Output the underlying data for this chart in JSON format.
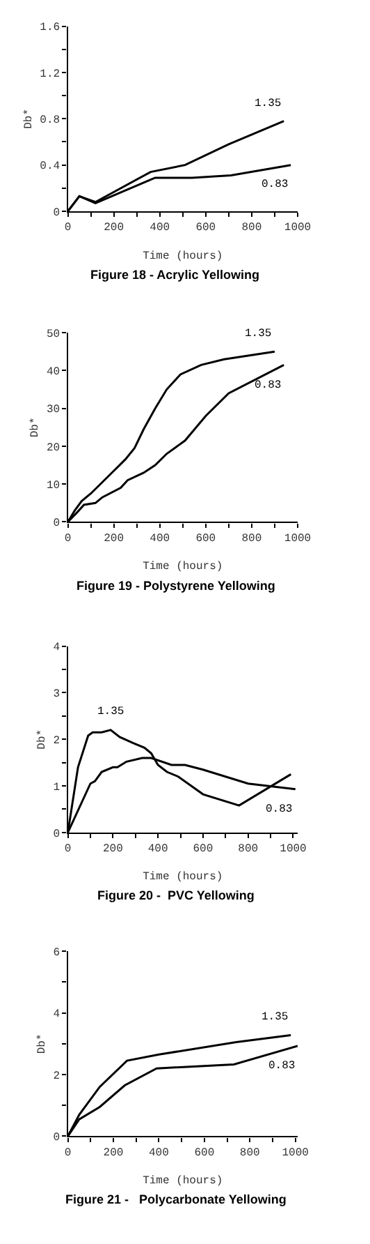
{
  "chart_data": [
    {
      "type": "line",
      "title": "Figure 18 - Acrylic Yellowing",
      "xlabel": "Time (hours)",
      "ylabel": "Db*",
      "legend": false,
      "marker": "none",
      "line_style": "solid",
      "xlim": [
        0,
        1000
      ],
      "xticks": [
        0,
        {
          "value": 100,
          "label": null
        },
        200,
        {
          "value": 300,
          "label": null
        },
        400,
        {
          "value": 500,
          "label": null
        },
        600,
        {
          "value": 700,
          "label": null
        },
        800,
        {
          "value": 900,
          "label": null
        },
        1000
      ],
      "ylim": [
        0,
        1.6
      ],
      "yticks": [
        0,
        {
          "value": 0.2,
          "label": null
        },
        0.4,
        {
          "value": 0.6,
          "label": null
        },
        0.8,
        {
          "value": 1.0,
          "label": null
        },
        1.2,
        {
          "value": 1.4,
          "label": null
        },
        1.6
      ],
      "series": [
        {
          "name": "1.35",
          "color": "#000000",
          "x": [
            0,
            50,
            120,
            360,
            510,
            700,
            940
          ],
          "values": [
            0,
            0.13,
            0.08,
            0.34,
            0.4,
            0.58,
            0.78
          ]
        },
        {
          "name": "0.83",
          "color": "#000000",
          "x": [
            0,
            50,
            120,
            380,
            540,
            710,
            970
          ],
          "values": [
            0,
            0.13,
            0.07,
            0.29,
            0.29,
            0.31,
            0.4
          ]
        }
      ]
    },
    {
      "type": "line",
      "title": "Figure 19 - Polystyrene Yellowing",
      "xlabel": "Time (hours)",
      "ylabel": "Db*",
      "legend": false,
      "marker": "none",
      "line_style": "solid",
      "xlim": [
        0,
        1000
      ],
      "xticks": [
        0,
        {
          "value": 100,
          "label": null
        },
        200,
        {
          "value": 300,
          "label": null
        },
        400,
        {
          "value": 500,
          "label": null
        },
        600,
        {
          "value": 700,
          "label": null
        },
        800,
        {
          "value": 900,
          "label": null
        },
        1000
      ],
      "ylim": [
        0,
        50
      ],
      "yticks": [
        0,
        10,
        20,
        30,
        40,
        50
      ],
      "series": [
        {
          "name": "1.35",
          "color": "#000000",
          "x": [
            0,
            30,
            60,
            100,
            150,
            200,
            250,
            290,
            330,
            380,
            430,
            490,
            580,
            680,
            900
          ],
          "values": [
            0,
            3,
            5.5,
            7.5,
            10.5,
            13.5,
            16.5,
            19.5,
            24.5,
            30,
            35,
            39,
            41.5,
            43,
            45
          ]
        },
        {
          "name": "0.83",
          "color": "#000000",
          "x": [
            0,
            40,
            70,
            120,
            150,
            230,
            260,
            330,
            380,
            430,
            510,
            600,
            700,
            940
          ],
          "values": [
            0,
            2.5,
            4.5,
            5,
            6.5,
            9,
            11,
            13,
            15,
            18,
            21.5,
            28,
            34,
            41.5
          ]
        }
      ]
    },
    {
      "type": "line",
      "title": "Figure 20 -  PVC Yellowing",
      "xlabel": "Time (hours)",
      "ylabel": "Db*",
      "legend": false,
      "marker": "none",
      "line_style": "solid",
      "xlim": [
        0,
        1020
      ],
      "xticks": [
        0,
        {
          "value": 100,
          "label": null
        },
        200,
        {
          "value": 300,
          "label": null
        },
        400,
        {
          "value": 500,
          "label": null
        },
        600,
        {
          "value": 700,
          "label": null
        },
        800,
        {
          "value": 900,
          "label": null
        },
        1000
      ],
      "ylim": [
        0,
        4
      ],
      "yticks": [
        0,
        {
          "value": 0.5,
          "label": null
        },
        1,
        {
          "value": 1.5,
          "label": null
        },
        2,
        {
          "value": 2.5,
          "label": null
        },
        3,
        {
          "value": 3.5,
          "label": null
        },
        4
      ],
      "series": [
        {
          "name": "1.35",
          "color": "#000000",
          "x": [
            0,
            45,
            90,
            110,
            150,
            190,
            230,
            290,
            340,
            370,
            400,
            440,
            490,
            600,
            760,
            990
          ],
          "values": [
            0,
            1.4,
            2.08,
            2.15,
            2.15,
            2.2,
            2.05,
            1.92,
            1.82,
            1.7,
            1.45,
            1.3,
            1.2,
            0.82,
            0.58,
            1.25
          ]
        },
        {
          "name": "0.83",
          "color": "#000000",
          "x": [
            0,
            100,
            120,
            150,
            200,
            220,
            260,
            330,
            370,
            460,
            520,
            600,
            700,
            800,
            1010
          ],
          "values": [
            0,
            1.05,
            1.1,
            1.3,
            1.4,
            1.4,
            1.52,
            1.6,
            1.6,
            1.45,
            1.45,
            1.35,
            1.2,
            1.05,
            0.93
          ]
        }
      ]
    },
    {
      "type": "line",
      "title": "Figure 21 -   Polycarbonate Yellowing",
      "xlabel": "Time (hours)",
      "ylabel": "Db*",
      "legend": false,
      "marker": "none",
      "line_style": "solid",
      "xlim": [
        0,
        1010
      ],
      "xticks": [
        0,
        {
          "value": 100,
          "label": null
        },
        200,
        {
          "value": 300,
          "label": null
        },
        400,
        {
          "value": 500,
          "label": null
        },
        600,
        {
          "value": 700,
          "label": null
        },
        800,
        {
          "value": 900,
          "label": null
        },
        1000
      ],
      "ylim": [
        0,
        6
      ],
      "yticks": [
        0,
        {
          "value": 1,
          "label": null
        },
        2,
        {
          "value": 3,
          "label": null
        },
        4,
        {
          "value": 5,
          "label": null
        },
        6
      ],
      "series": [
        {
          "name": "1.35",
          "color": "#000000",
          "x": [
            0,
            50,
            140,
            260,
            400,
            740,
            980
          ],
          "values": [
            0,
            0.7,
            1.6,
            2.45,
            2.65,
            3.05,
            3.28
          ]
        },
        {
          "name": "0.83",
          "color": "#000000",
          "x": [
            0,
            50,
            140,
            250,
            390,
            730,
            1010
          ],
          "values": [
            0,
            0.55,
            0.95,
            1.65,
            2.2,
            2.33,
            2.93
          ]
        }
      ]
    }
  ]
}
